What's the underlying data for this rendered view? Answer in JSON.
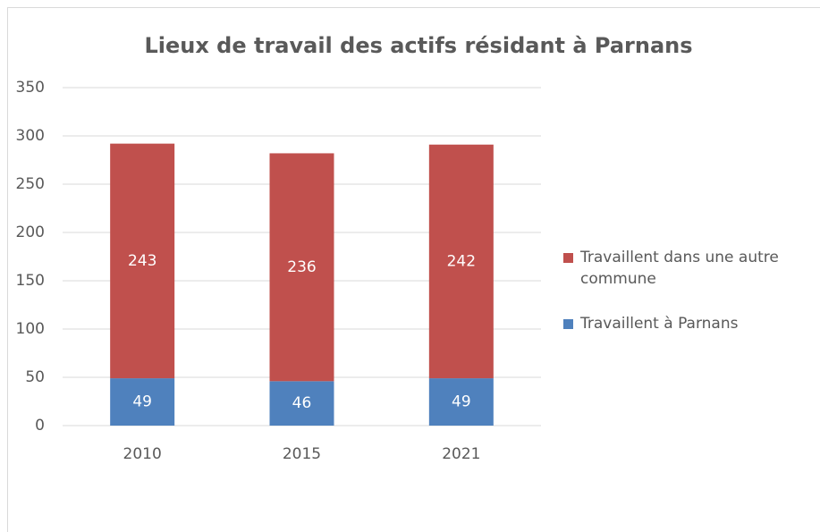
{
  "chart_data": {
    "type": "stacked_bar",
    "title": "Lieux de travail des actifs résidant à Parnans",
    "categories": [
      "2010",
      "2015",
      "2021"
    ],
    "series": [
      {
        "name": "Travaillent à Parnans",
        "color": "#4f81bd",
        "values": [
          49,
          46,
          49
        ]
      },
      {
        "name": "Travaillent dans une autre commune",
        "color": "#c0504d",
        "values": [
          243,
          236,
          242
        ]
      }
    ],
    "ylim": [
      0,
      350
    ],
    "yticks": [
      0,
      50,
      100,
      150,
      200,
      250,
      300,
      350
    ],
    "grid": true,
    "legend": "right"
  }
}
